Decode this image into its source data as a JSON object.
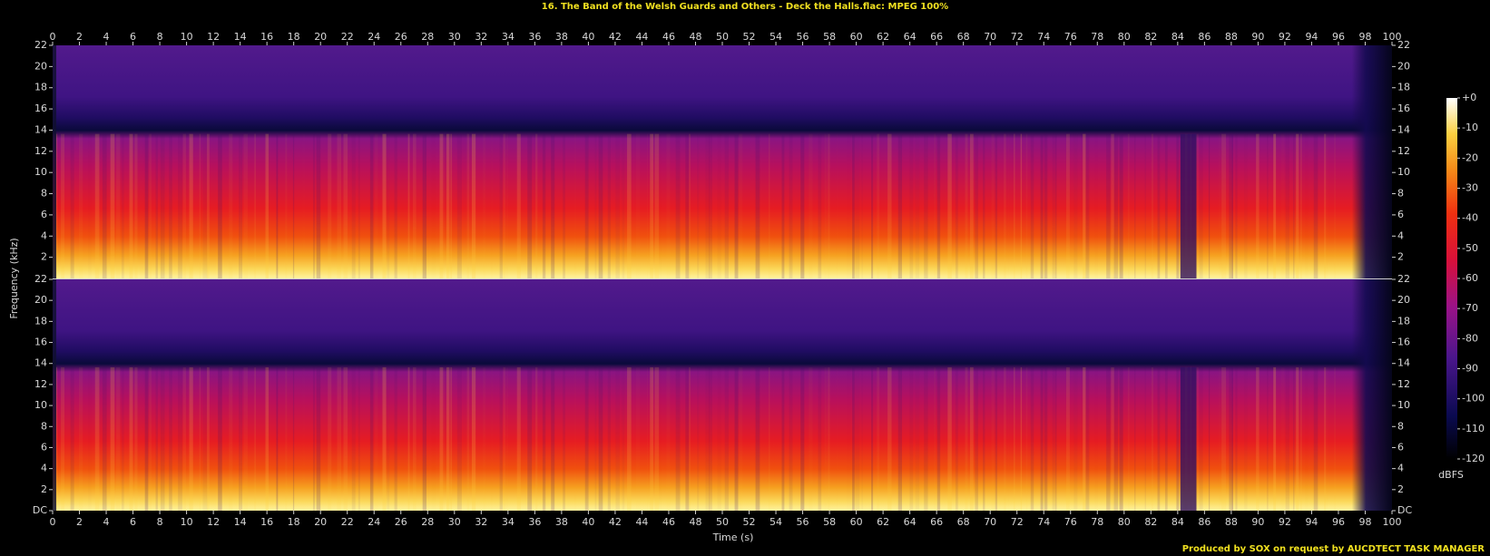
{
  "chart_data": {
    "type": "spectrogram",
    "title": "16. The Band of the Welsh Guards and Others - Deck the Halls.flac: MPEG 100%",
    "xlabel": "Time (s)",
    "ylabel": "Frequency (kHz)",
    "xlim": [
      0,
      100
    ],
    "xticks": [
      0,
      2,
      4,
      6,
      8,
      10,
      12,
      14,
      16,
      18,
      20,
      22,
      24,
      26,
      28,
      30,
      32,
      34,
      36,
      38,
      40,
      42,
      44,
      46,
      48,
      50,
      52,
      54,
      56,
      58,
      60,
      62,
      64,
      66,
      68,
      70,
      72,
      74,
      76,
      78,
      80,
      82,
      84,
      86,
      88,
      90,
      92,
      94,
      96,
      98,
      100
    ],
    "ylim": [
      0,
      22
    ],
    "yticks": [
      {
        "value": 0,
        "label": "DC"
      },
      2,
      4,
      6,
      8,
      10,
      12,
      14,
      16,
      18,
      20,
      22
    ],
    "colorbar": {
      "label": "dBFS",
      "lim": [
        -120,
        0
      ],
      "ticks": [
        {
          "value": 0,
          "label": "+0"
        },
        -10,
        -20,
        -30,
        -40,
        -50,
        -60,
        -70,
        -80,
        -90,
        -100,
        -110,
        -120
      ]
    },
    "footer": "Produced by SOX on request by AUCDTECT TASK MANAGER"
  }
}
